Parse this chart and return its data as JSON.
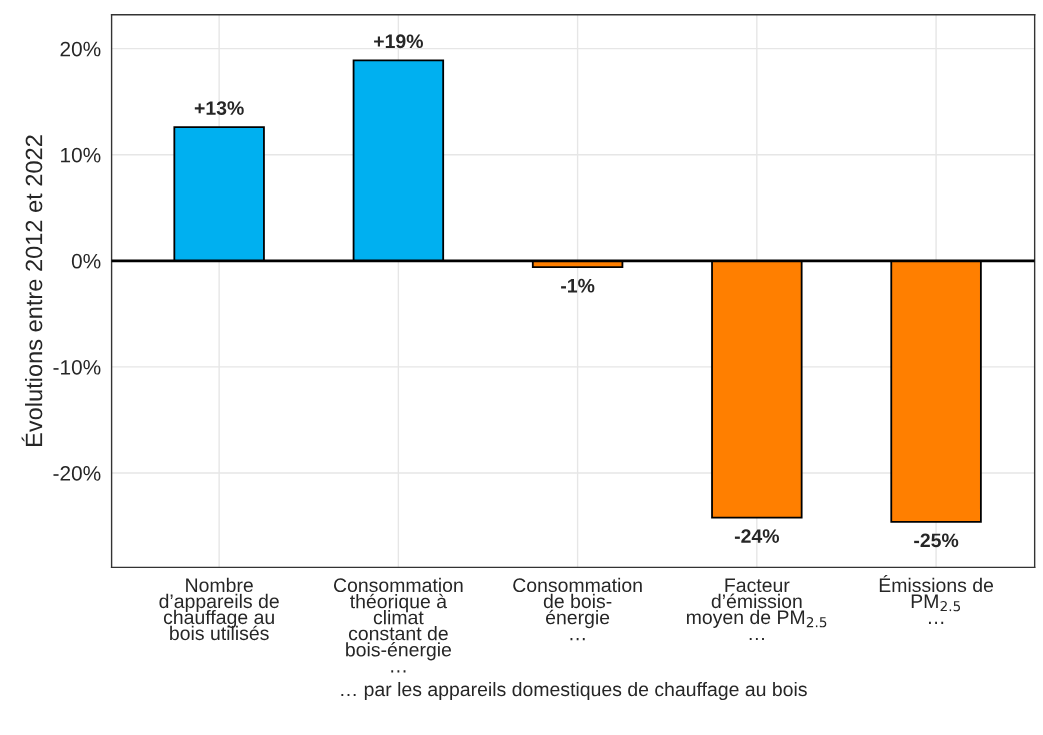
{
  "chart_data": {
    "type": "bar",
    "ylabel": "Évolutions entre 2012 et 2022",
    "xlabel": "… par les appareils domestiques de chauffage au bois",
    "categories": [
      "Nombre\nd’appareils de\nchauffage au\nbois utilisés",
      "Consommation\nthéorique à\nclimat\nconstant de\nbois-énergie\n…",
      "Consommation\nde bois-\nénergie\n…",
      "Facteur\nd’émission\nmoyen de PM$_{2.5}$\n…",
      "Émissions de\nPM$_{2.5}$\n…"
    ],
    "values": [
      12.6,
      18.9,
      -0.6,
      -24.2,
      -24.6
    ],
    "colors": [
      "#00b0f0",
      "#00b0f0",
      "#ff7f00",
      "#ff7f00",
      "#ff7f00"
    ],
    "value_labels": [
      "+13%",
      "+19%",
      "-1%",
      "-24%",
      "-25%"
    ],
    "ylim": [
      -28.9,
      23.2
    ],
    "yticks": [
      {
        "value": -20,
        "label": "-20%"
      },
      {
        "value": -10,
        "label": "-10%"
      },
      {
        "value": 0,
        "label": "0%"
      },
      {
        "value": 10,
        "label": "10%"
      },
      {
        "value": 20,
        "label": "20%"
      }
    ],
    "ref_lines": [
      {
        "axis": "y",
        "value": 0,
        "color": "#000000"
      }
    ],
    "grid": true,
    "legend": false
  }
}
